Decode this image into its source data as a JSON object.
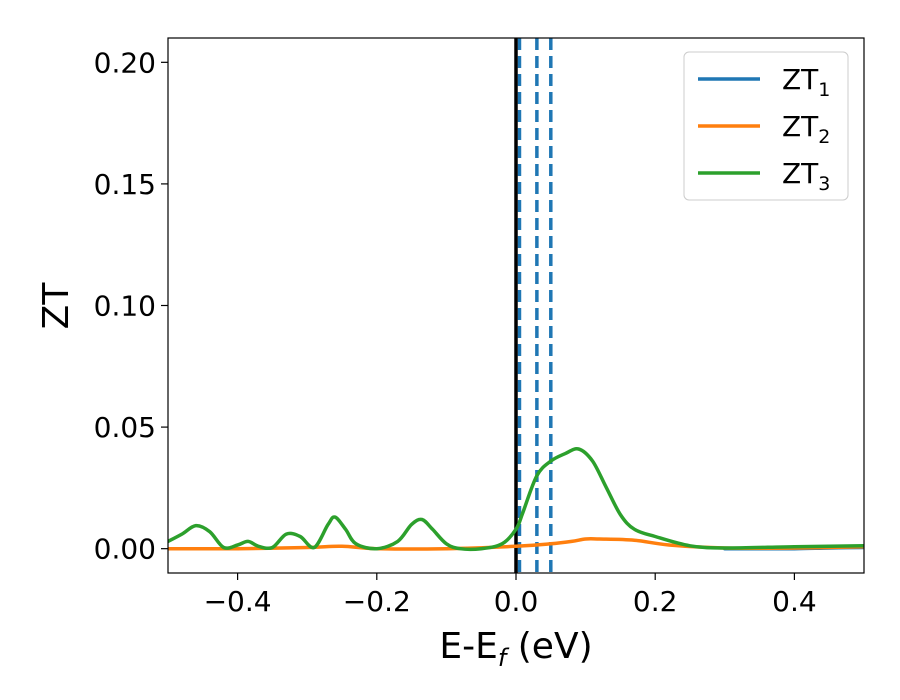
{
  "chart_data": {
    "type": "line",
    "xlabel": {
      "main": "E-E",
      "sub": "f",
      "unit": " (eV)"
    },
    "ylabel": "ZT",
    "xlim": [
      -0.5,
      0.5
    ],
    "ylim": [
      -0.01,
      0.21
    ],
    "xticks": [
      {
        "value": -0.4,
        "label": "−0.4"
      },
      {
        "value": -0.2,
        "label": "−0.2"
      },
      {
        "value": 0.0,
        "label": "0.0"
      },
      {
        "value": 0.2,
        "label": "0.2"
      },
      {
        "value": 0.4,
        "label": "0.4"
      }
    ],
    "yticks": [
      {
        "value": 0.0,
        "label": "0.00"
      },
      {
        "value": 0.05,
        "label": "0.05"
      },
      {
        "value": 0.1,
        "label": "0.10"
      },
      {
        "value": 0.15,
        "label": "0.15"
      },
      {
        "value": 0.2,
        "label": "0.20"
      }
    ],
    "grid": false,
    "legend_position": "top-right",
    "fermi_line": {
      "x": 0.0,
      "color": "#000000"
    },
    "dashed_lines": {
      "x": [
        0.005,
        0.03,
        0.05
      ],
      "color": "#1f77b4"
    },
    "series": [
      {
        "name": "ZT",
        "sub": "1",
        "color": "#1f77b4",
        "x": [
          0.3,
          0.35,
          0.4,
          0.45,
          0.5
        ],
        "y": [
          0.0,
          0.0,
          0.0,
          0.0003,
          0.0005
        ]
      },
      {
        "name": "ZT",
        "sub": "2",
        "color": "#ff7f0e",
        "x": [
          -0.5,
          -0.4,
          -0.3,
          -0.25,
          -0.2,
          -0.1,
          0.0,
          0.05,
          0.08,
          0.1,
          0.12,
          0.17,
          0.22,
          0.3,
          0.4,
          0.5
        ],
        "y": [
          0.0,
          0.0,
          0.0005,
          0.001,
          0.0,
          0.0,
          0.001,
          0.002,
          0.003,
          0.004,
          0.004,
          0.0035,
          0.0015,
          0.0003,
          0.0003,
          0.0008
        ]
      },
      {
        "name": "ZT",
        "sub": "3",
        "color": "#2ca02c",
        "x": [
          -0.5,
          -0.48,
          -0.46,
          -0.44,
          -0.42,
          -0.4,
          -0.385,
          -0.37,
          -0.35,
          -0.33,
          -0.31,
          -0.29,
          -0.27,
          -0.26,
          -0.245,
          -0.23,
          -0.2,
          -0.17,
          -0.15,
          -0.135,
          -0.12,
          -0.1,
          -0.08,
          -0.05,
          -0.02,
          0.0,
          0.01,
          0.03,
          0.05,
          0.07,
          0.09,
          0.11,
          0.13,
          0.15,
          0.17,
          0.2,
          0.25,
          0.3,
          0.4,
          0.5
        ],
        "y": [
          0.003,
          0.006,
          0.0095,
          0.007,
          0.0005,
          0.0015,
          0.003,
          0.001,
          0.0005,
          0.006,
          0.005,
          0.0005,
          0.01,
          0.013,
          0.008,
          0.002,
          0.0,
          0.003,
          0.01,
          0.012,
          0.008,
          0.002,
          0.0,
          0.0,
          0.002,
          0.008,
          0.015,
          0.03,
          0.036,
          0.039,
          0.041,
          0.036,
          0.025,
          0.014,
          0.008,
          0.005,
          0.0012,
          0.0003,
          0.0008,
          0.0012
        ]
      }
    ]
  }
}
